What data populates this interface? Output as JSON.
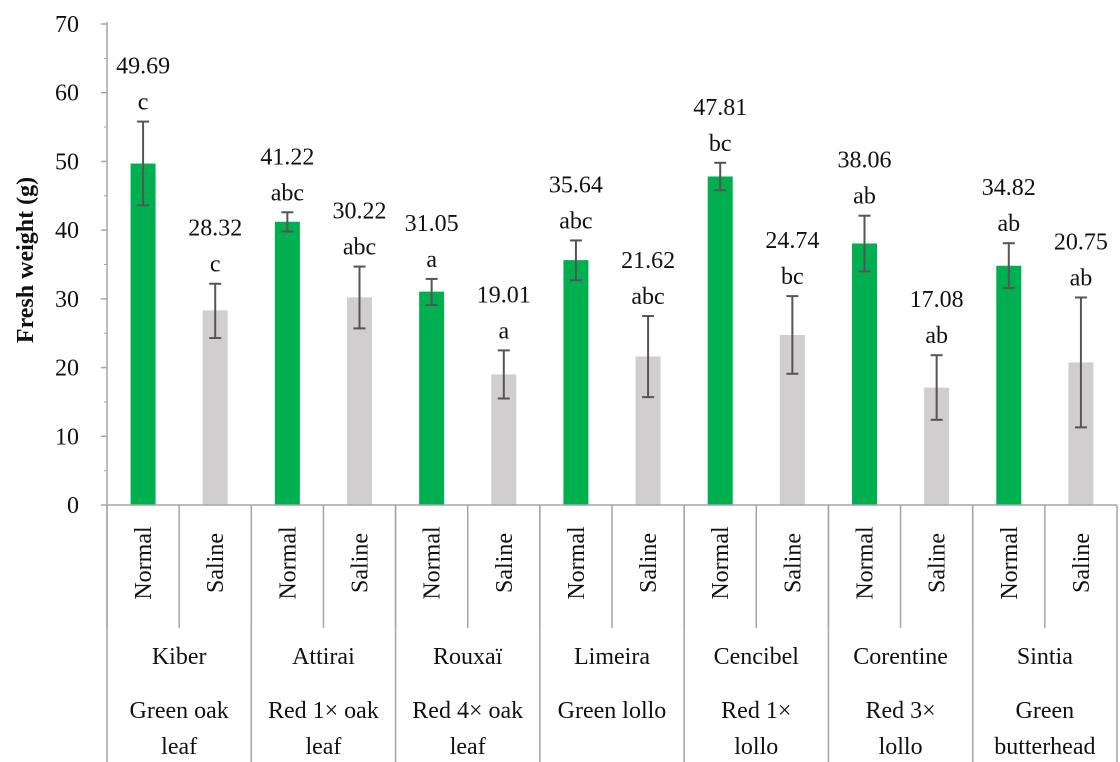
{
  "chart_data": {
    "type": "bar",
    "title": "",
    "xlabel": "",
    "ylabel": "Fresh weight (g)",
    "ylim": [
      0,
      70
    ],
    "yticks": [
      0,
      10,
      20,
      30,
      40,
      50,
      60,
      70
    ],
    "grid": false,
    "legend": "none",
    "colors": {
      "Normal": "#00b050",
      "Saline": "#d0cece",
      "error_bar": "#555555",
      "axis": "#a6a6a6"
    },
    "bars": [
      {
        "variety": "Kiber",
        "condition": "Normal",
        "value": 49.69,
        "err_low": 43.6,
        "err_high": 55.8,
        "letter": "c"
      },
      {
        "variety": "Kiber",
        "condition": "Saline",
        "value": 28.32,
        "err_low": 24.3,
        "err_high": 32.2,
        "letter": "c"
      },
      {
        "variety": "Attirai",
        "condition": "Normal",
        "value": 41.22,
        "err_low": 39.8,
        "err_high": 42.6,
        "letter": "abc"
      },
      {
        "variety": "Attirai",
        "condition": "Saline",
        "value": 30.22,
        "err_low": 25.7,
        "err_high": 34.7,
        "letter": "abc"
      },
      {
        "variety": "Rouxaï",
        "condition": "Normal",
        "value": 31.05,
        "err_low": 29.1,
        "err_high": 32.9,
        "letter": "a"
      },
      {
        "variety": "Rouxaï",
        "condition": "Saline",
        "value": 19.01,
        "err_low": 15.5,
        "err_high": 22.5,
        "letter": "a"
      },
      {
        "variety": "Limeira",
        "condition": "Normal",
        "value": 35.64,
        "err_low": 32.7,
        "err_high": 38.5,
        "letter": "abc"
      },
      {
        "variety": "Limeira",
        "condition": "Saline",
        "value": 21.62,
        "err_low": 15.7,
        "err_high": 27.5,
        "letter": "abc"
      },
      {
        "variety": "Cencibel",
        "condition": "Normal",
        "value": 47.81,
        "err_low": 45.8,
        "err_high": 49.8,
        "letter": "bc"
      },
      {
        "variety": "Cencibel",
        "condition": "Saline",
        "value": 24.74,
        "err_low": 19.1,
        "err_high": 30.4,
        "letter": "bc"
      },
      {
        "variety": "Corentine",
        "condition": "Normal",
        "value": 38.06,
        "err_low": 34.0,
        "err_high": 42.1,
        "letter": "ab"
      },
      {
        "variety": "Corentine",
        "condition": "Saline",
        "value": 17.08,
        "err_low": 12.4,
        "err_high": 21.8,
        "letter": "ab"
      },
      {
        "variety": "Sintia",
        "condition": "Normal",
        "value": 34.82,
        "err_low": 31.6,
        "err_high": 38.1,
        "letter": "ab"
      },
      {
        "variety": "Sintia",
        "condition": "Saline",
        "value": 20.75,
        "err_low": 11.3,
        "err_high": 30.2,
        "letter": "ab"
      }
    ],
    "groups": [
      {
        "variety": "Kiber",
        "type_lines": [
          "Green oak",
          "leaf"
        ]
      },
      {
        "variety": "Attirai",
        "type_lines": [
          "Red 1× oak",
          "leaf"
        ]
      },
      {
        "variety": "Rouxaï",
        "type_lines": [
          "Red 4× oak",
          "leaf"
        ]
      },
      {
        "variety": "Limeira",
        "type_lines": [
          "Green lollo"
        ]
      },
      {
        "variety": "Cencibel",
        "type_lines": [
          "Red 1×",
          "lollo"
        ]
      },
      {
        "variety": "Corentine",
        "type_lines": [
          "Red 3×",
          "lollo"
        ]
      },
      {
        "variety": "Sintia",
        "type_lines": [
          "Green",
          "butterhead"
        ]
      }
    ]
  }
}
